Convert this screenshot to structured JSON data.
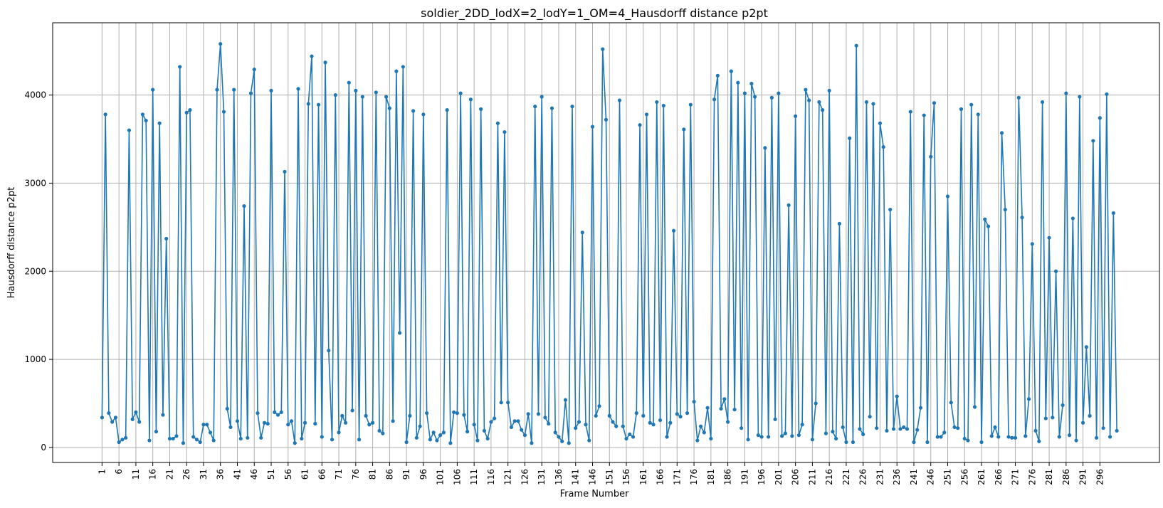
{
  "chart_data": {
    "type": "line",
    "title": "soldier_2DD_lodX=2_lodY=1_OM=4_Hausdorff distance p2pt",
    "xlabel": "Frame Number",
    "ylabel": "Hausdorff distance p2pt",
    "xlim": [
      -13.6,
      313.6
    ],
    "ylim": [
      -170,
      4820
    ],
    "x_ticks": [
      1,
      6,
      11,
      16,
      21,
      26,
      31,
      36,
      41,
      46,
      51,
      56,
      61,
      66,
      71,
      76,
      81,
      86,
      91,
      96,
      101,
      106,
      111,
      116,
      121,
      126,
      131,
      136,
      141,
      146,
      151,
      156,
      161,
      166,
      171,
      176,
      181,
      186,
      191,
      196,
      201,
      206,
      211,
      216,
      221,
      226,
      231,
      236,
      241,
      246,
      251,
      256,
      261,
      266,
      271,
      276,
      281,
      286,
      291,
      296
    ],
    "y_ticks": [
      0,
      1000,
      2000,
      3000,
      4000
    ],
    "grid": true,
    "line_color": "#1f77b4",
    "series": [
      {
        "x_start": 1,
        "values": [
          340,
          3780,
          390,
          290,
          340,
          60,
          90,
          110,
          3600,
          320,
          400,
          290,
          3780,
          3710,
          80,
          4060,
          180,
          3680,
          370,
          2370,
          100,
          100,
          130,
          4320,
          50,
          3800,
          3830,
          120,
          90,
          60,
          260,
          260,
          170,
          80,
          4060,
          4580,
          3810,
          440,
          230,
          4060,
          300,
          100,
          2740,
          110,
          4020,
          4290,
          390,
          110,
          280,
          270,
          4050,
          400,
          370,
          400,
          3130,
          260,
          300,
          50,
          4070,
          100,
          280,
          3900,
          4440,
          270,
          3890,
          120,
          4370,
          1100,
          90,
          4000,
          170,
          360,
          280,
          4140,
          420,
          4050,
          90,
          3980,
          360,
          260,
          280,
          4030,
          190,
          160,
          3980,
          3850,
          300,
          4270,
          1300,
          4320,
          60,
          360,
          3820,
          110,
          240,
          3780,
          390,
          90,
          170,
          80,
          140,
          170,
          3830,
          50,
          400,
          390,
          4020,
          370,
          180,
          3950,
          260,
          80,
          3840,
          190,
          100,
          290,
          330,
          3680,
          510,
          3580,
          510,
          230,
          300,
          300,
          200,
          140,
          380,
          50,
          3870,
          380,
          3980,
          340,
          270,
          3850,
          170,
          120,
          70,
          540,
          50,
          3870,
          220,
          290,
          2440,
          260,
          80,
          3640,
          360,
          470,
          4520,
          3720,
          360,
          290,
          240,
          3940,
          240,
          100,
          150,
          120,
          390,
          3660,
          360,
          3780,
          280,
          260,
          3920,
          310,
          3880,
          120,
          280,
          2460,
          380,
          350,
          3610,
          390,
          3890,
          520,
          80,
          240,
          170,
          450,
          100,
          3950,
          4220,
          440,
          550,
          290,
          4270,
          430,
          4140,
          220,
          4020,
          90,
          4130,
          3980,
          140,
          120,
          3400,
          120,
          3970,
          320,
          4020,
          130,
          160,
          2750,
          130,
          3760,
          140,
          260,
          4060,
          3940,
          90,
          500,
          3920,
          3830,
          160,
          4050,
          180,
          100,
          2540,
          230,
          60,
          3510,
          60,
          4560,
          210,
          150,
          3920,
          350,
          3900,
          220,
          3680,
          3410,
          190,
          2700,
          210,
          580,
          210,
          230,
          210,
          3810,
          60,
          200,
          450,
          3770,
          60,
          3300,
          3910,
          120,
          120,
          170,
          2850,
          510,
          230,
          220,
          3840,
          100,
          80,
          3890,
          460,
          3780,
          60,
          2590,
          2510,
          130,
          230,
          120,
          3570,
          2700,
          120,
          110,
          110,
          3970,
          2610,
          130,
          550,
          2310,
          190,
          70,
          3920,
          330,
          2380,
          340,
          2000,
          120,
          480,
          4020,
          140,
          2600,
          80,
          3980,
          280,
          1140,
          360,
          3480,
          110,
          3740,
          220,
          4010,
          120,
          2660,
          190
        ]
      }
    ]
  }
}
